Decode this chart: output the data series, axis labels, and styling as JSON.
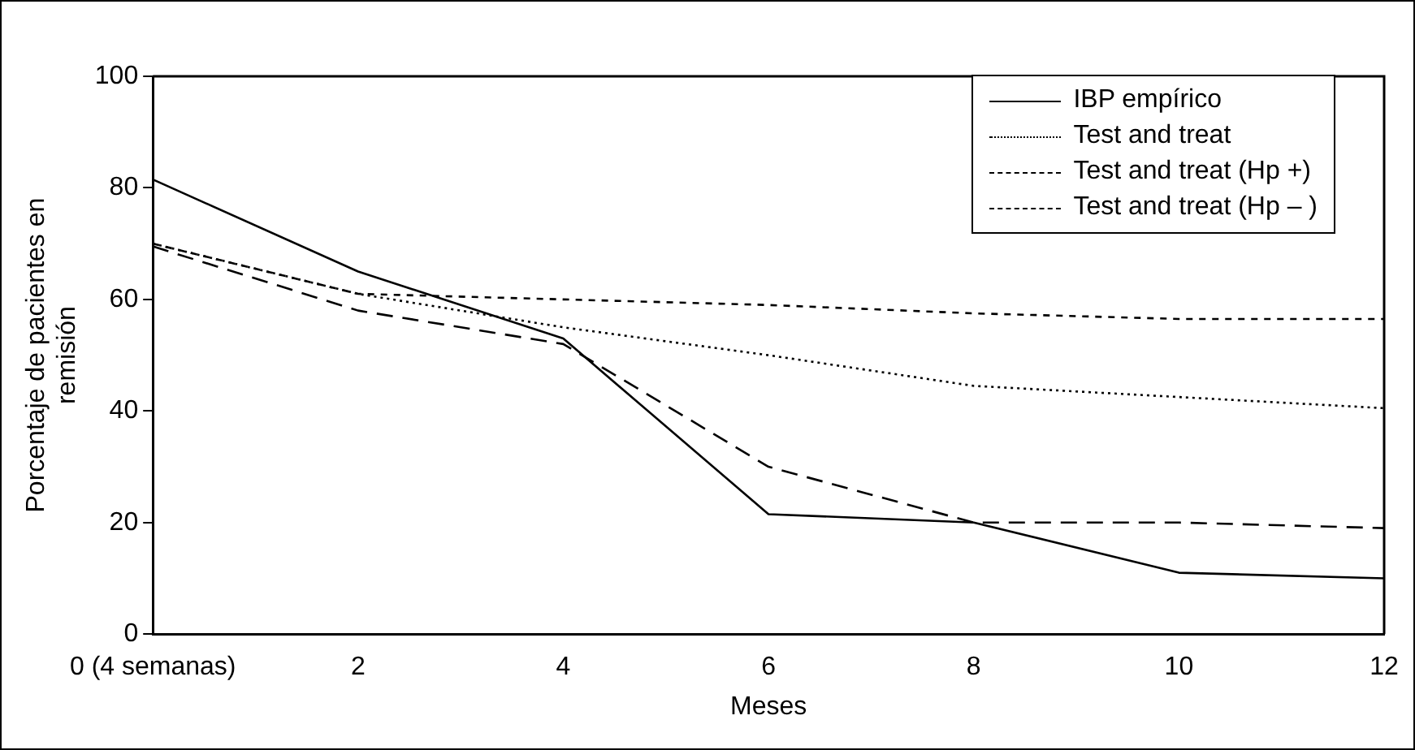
{
  "chart_data": {
    "type": "line",
    "xlabel": "Meses",
    "ylabel": "Porcentaje de pacientes en remisión",
    "categories": [
      "0 (4 semanas)",
      "2",
      "4",
      "6",
      "8",
      "10",
      "12"
    ],
    "ylim": [
      0,
      100
    ],
    "yticks": [
      0,
      20,
      40,
      60,
      80,
      100
    ],
    "grid": false,
    "legend": "top right",
    "marker": "none",
    "series": [
      {
        "name": "IBP empírico",
        "color": "#000000",
        "line_style": "solid",
        "values": [
          81.5,
          65,
          53,
          21.5,
          20,
          11,
          10
        ]
      },
      {
        "name": "Test and treat",
        "color": "#000000",
        "line_style": "dotted",
        "values": [
          70,
          61,
          55,
          50,
          44.5,
          42.5,
          40.5
        ]
      },
      {
        "name": "Test and treat (Hp +)",
        "color": "#000000",
        "line_style": "dashed",
        "values": [
          70,
          61,
          60,
          59,
          57.5,
          56.5,
          56.5
        ]
      },
      {
        "name": "Test and treat (Hp – )",
        "color": "#000000",
        "line_style": "longdash",
        "values": [
          69.5,
          58,
          52,
          30,
          20,
          20,
          19
        ]
      }
    ]
  }
}
